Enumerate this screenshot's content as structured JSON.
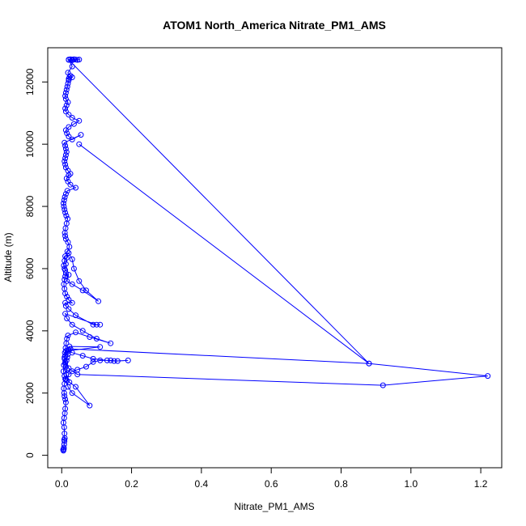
{
  "chart_data": {
    "type": "line",
    "title": "ATOM1 North_America Nitrate_PM1_AMS",
    "xlabel": "Nitrate_PM1_AMS",
    "ylabel": "Altitude (m)",
    "xlim": [
      -0.04,
      1.26
    ],
    "ylim": [
      -400,
      13100
    ],
    "x_ticks": [
      0.0,
      0.2,
      0.4,
      0.6,
      0.8,
      1.0,
      1.2
    ],
    "x_tick_labels": [
      "0.0",
      "0.2",
      "0.4",
      "0.6",
      "0.8",
      "1.0",
      "1.2"
    ],
    "y_ticks": [
      0,
      2000,
      4000,
      6000,
      8000,
      10000,
      12000
    ],
    "y_tick_labels": [
      "0",
      "2000",
      "4000",
      "6000",
      "8000",
      "10000",
      "12000"
    ],
    "grid": false,
    "legend": "none",
    "series_color": "#0000ff",
    "marker": "open-circle",
    "points": [
      [
        0.005,
        150
      ],
      [
        0.006,
        200
      ],
      [
        0.004,
        180
      ],
      [
        0.006,
        250
      ],
      [
        0.007,
        350
      ],
      [
        0.008,
        450
      ],
      [
        0.009,
        550
      ],
      [
        0.007,
        500
      ],
      [
        0.008,
        700
      ],
      [
        0.007,
        900
      ],
      [
        0.005,
        1050
      ],
      [
        0.007,
        1200
      ],
      [
        0.009,
        1350
      ],
      [
        0.01,
        1500
      ],
      [
        0.012,
        1700
      ],
      [
        0.01,
        1800
      ],
      [
        0.008,
        1900
      ],
      [
        0.007,
        2000
      ],
      [
        0.006,
        2150
      ],
      [
        0.008,
        2300
      ],
      [
        0.01,
        2450
      ],
      [
        0.013,
        2600
      ],
      [
        0.015,
        2750
      ],
      [
        0.012,
        2850
      ],
      [
        0.01,
        2950
      ],
      [
        0.014,
        3050
      ],
      [
        0.016,
        3150
      ],
      [
        0.018,
        3250
      ],
      [
        0.02,
        3400
      ],
      [
        0.022,
        3500
      ],
      [
        0.11,
        3480
      ],
      [
        0.012,
        3350
      ],
      [
        0.01,
        3200
      ],
      [
        0.008,
        3100
      ],
      [
        0.006,
        2900
      ],
      [
        0.005,
        2700
      ],
      [
        0.008,
        2550
      ],
      [
        0.012,
        2450
      ],
      [
        0.022,
        2350
      ],
      [
        0.04,
        2200
      ],
      [
        0.08,
        1600
      ],
      [
        0.03,
        2000
      ],
      [
        0.018,
        2200
      ],
      [
        0.015,
        2400
      ],
      [
        0.02,
        2600
      ],
      [
        0.03,
        2700
      ],
      [
        0.045,
        2750
      ],
      [
        0.07,
        2850
      ],
      [
        0.09,
        3000
      ],
      [
        0.11,
        3050
      ],
      [
        0.14,
        3050
      ],
      [
        0.16,
        3030
      ],
      [
        0.19,
        3050
      ],
      [
        0.15,
        3030
      ],
      [
        0.13,
        3050
      ],
      [
        0.09,
        3100
      ],
      [
        0.06,
        3200
      ],
      [
        0.03,
        3300
      ],
      [
        0.02,
        3350
      ],
      [
        0.025,
        3420
      ],
      [
        0.88,
        2950
      ],
      [
        1.22,
        2550
      ],
      [
        0.92,
        2250
      ],
      [
        0.045,
        2600
      ],
      [
        0.02,
        2800
      ],
      [
        0.01,
        3000
      ],
      [
        0.008,
        3150
      ],
      [
        0.009,
        3300
      ],
      [
        0.011,
        3450
      ],
      [
        0.013,
        3600
      ],
      [
        0.015,
        3750
      ],
      [
        0.018,
        3850
      ],
      [
        0.04,
        3950
      ],
      [
        0.08,
        3800
      ],
      [
        0.14,
        3600
      ],
      [
        0.1,
        3750
      ],
      [
        0.06,
        4000
      ],
      [
        0.03,
        4200
      ],
      [
        0.015,
        4400
      ],
      [
        0.01,
        4550
      ],
      [
        0.1,
        4200
      ],
      [
        0.11,
        4200
      ],
      [
        0.09,
        4200
      ],
      [
        0.04,
        4500
      ],
      [
        0.02,
        4700
      ],
      [
        0.012,
        4800
      ],
      [
        0.01,
        4900
      ],
      [
        0.03,
        4900
      ],
      [
        0.02,
        5000
      ],
      [
        0.015,
        5100
      ],
      [
        0.01,
        5200
      ],
      [
        0.008,
        5350
      ],
      [
        0.006,
        5500
      ],
      [
        0.008,
        5650
      ],
      [
        0.01,
        5750
      ],
      [
        0.012,
        5850
      ],
      [
        0.02,
        5800
      ],
      [
        0.015,
        5600
      ],
      [
        0.03,
        5500
      ],
      [
        0.06,
        5300
      ],
      [
        0.105,
        4950
      ],
      [
        0.07,
        5300
      ],
      [
        0.05,
        5600
      ],
      [
        0.035,
        6000
      ],
      [
        0.03,
        6300
      ],
      [
        0.02,
        6500
      ],
      [
        0.01,
        6400
      ],
      [
        0.008,
        6250
      ],
      [
        0.006,
        6100
      ],
      [
        0.008,
        6000
      ],
      [
        0.01,
        5950
      ],
      [
        0.012,
        6150
      ],
      [
        0.014,
        6350
      ],
      [
        0.016,
        6550
      ],
      [
        0.022,
        6700
      ],
      [
        0.018,
        6850
      ],
      [
        0.012,
        6950
      ],
      [
        0.01,
        7050
      ],
      [
        0.009,
        7150
      ],
      [
        0.011,
        7300
      ],
      [
        0.014,
        7450
      ],
      [
        0.017,
        7600
      ],
      [
        0.013,
        7700
      ],
      [
        0.01,
        7800
      ],
      [
        0.008,
        7900
      ],
      [
        0.006,
        8000
      ],
      [
        0.005,
        8100
      ],
      [
        0.007,
        8200
      ],
      [
        0.009,
        8300
      ],
      [
        0.012,
        8400
      ],
      [
        0.016,
        8500
      ],
      [
        0.04,
        8600
      ],
      [
        0.025,
        8700
      ],
      [
        0.018,
        8800
      ],
      [
        0.014,
        8900
      ],
      [
        0.02,
        9000
      ],
      [
        0.025,
        9050
      ],
      [
        0.018,
        9150
      ],
      [
        0.012,
        9250
      ],
      [
        0.01,
        9350
      ],
      [
        0.008,
        9450
      ],
      [
        0.01,
        9550
      ],
      [
        0.012,
        9650
      ],
      [
        0.014,
        9750
      ],
      [
        0.012,
        9850
      ],
      [
        0.01,
        9950
      ],
      [
        0.008,
        10050
      ],
      [
        0.055,
        10300
      ],
      [
        0.03,
        10150
      ],
      [
        0.02,
        10250
      ],
      [
        0.015,
        10350
      ],
      [
        0.012,
        10450
      ],
      [
        0.02,
        10550
      ],
      [
        0.035,
        10650
      ],
      [
        0.05,
        10750
      ],
      [
        0.03,
        10850
      ],
      [
        0.02,
        10950
      ],
      [
        0.012,
        11050
      ],
      [
        0.01,
        11150
      ],
      [
        0.014,
        11250
      ],
      [
        0.018,
        11350
      ],
      [
        0.012,
        11450
      ],
      [
        0.01,
        11550
      ],
      [
        0.012,
        11650
      ],
      [
        0.014,
        11750
      ],
      [
        0.016,
        11850
      ],
      [
        0.018,
        11950
      ],
      [
        0.02,
        12050
      ],
      [
        0.022,
        12150
      ],
      [
        0.025,
        12200
      ],
      [
        0.03,
        12150
      ],
      [
        0.02,
        12100
      ],
      [
        0.018,
        12300
      ],
      [
        0.03,
        12500
      ],
      [
        0.02,
        12720
      ],
      [
        0.025,
        12730
      ],
      [
        0.03,
        12720
      ],
      [
        0.035,
        12730
      ],
      [
        0.04,
        12720
      ],
      [
        0.05,
        12720
      ],
      [
        0.045,
        12710
      ],
      [
        0.03,
        12700
      ],
      [
        0.02,
        12710
      ],
      [
        0.88,
        2950
      ],
      [
        0.05,
        10000
      ]
    ]
  }
}
